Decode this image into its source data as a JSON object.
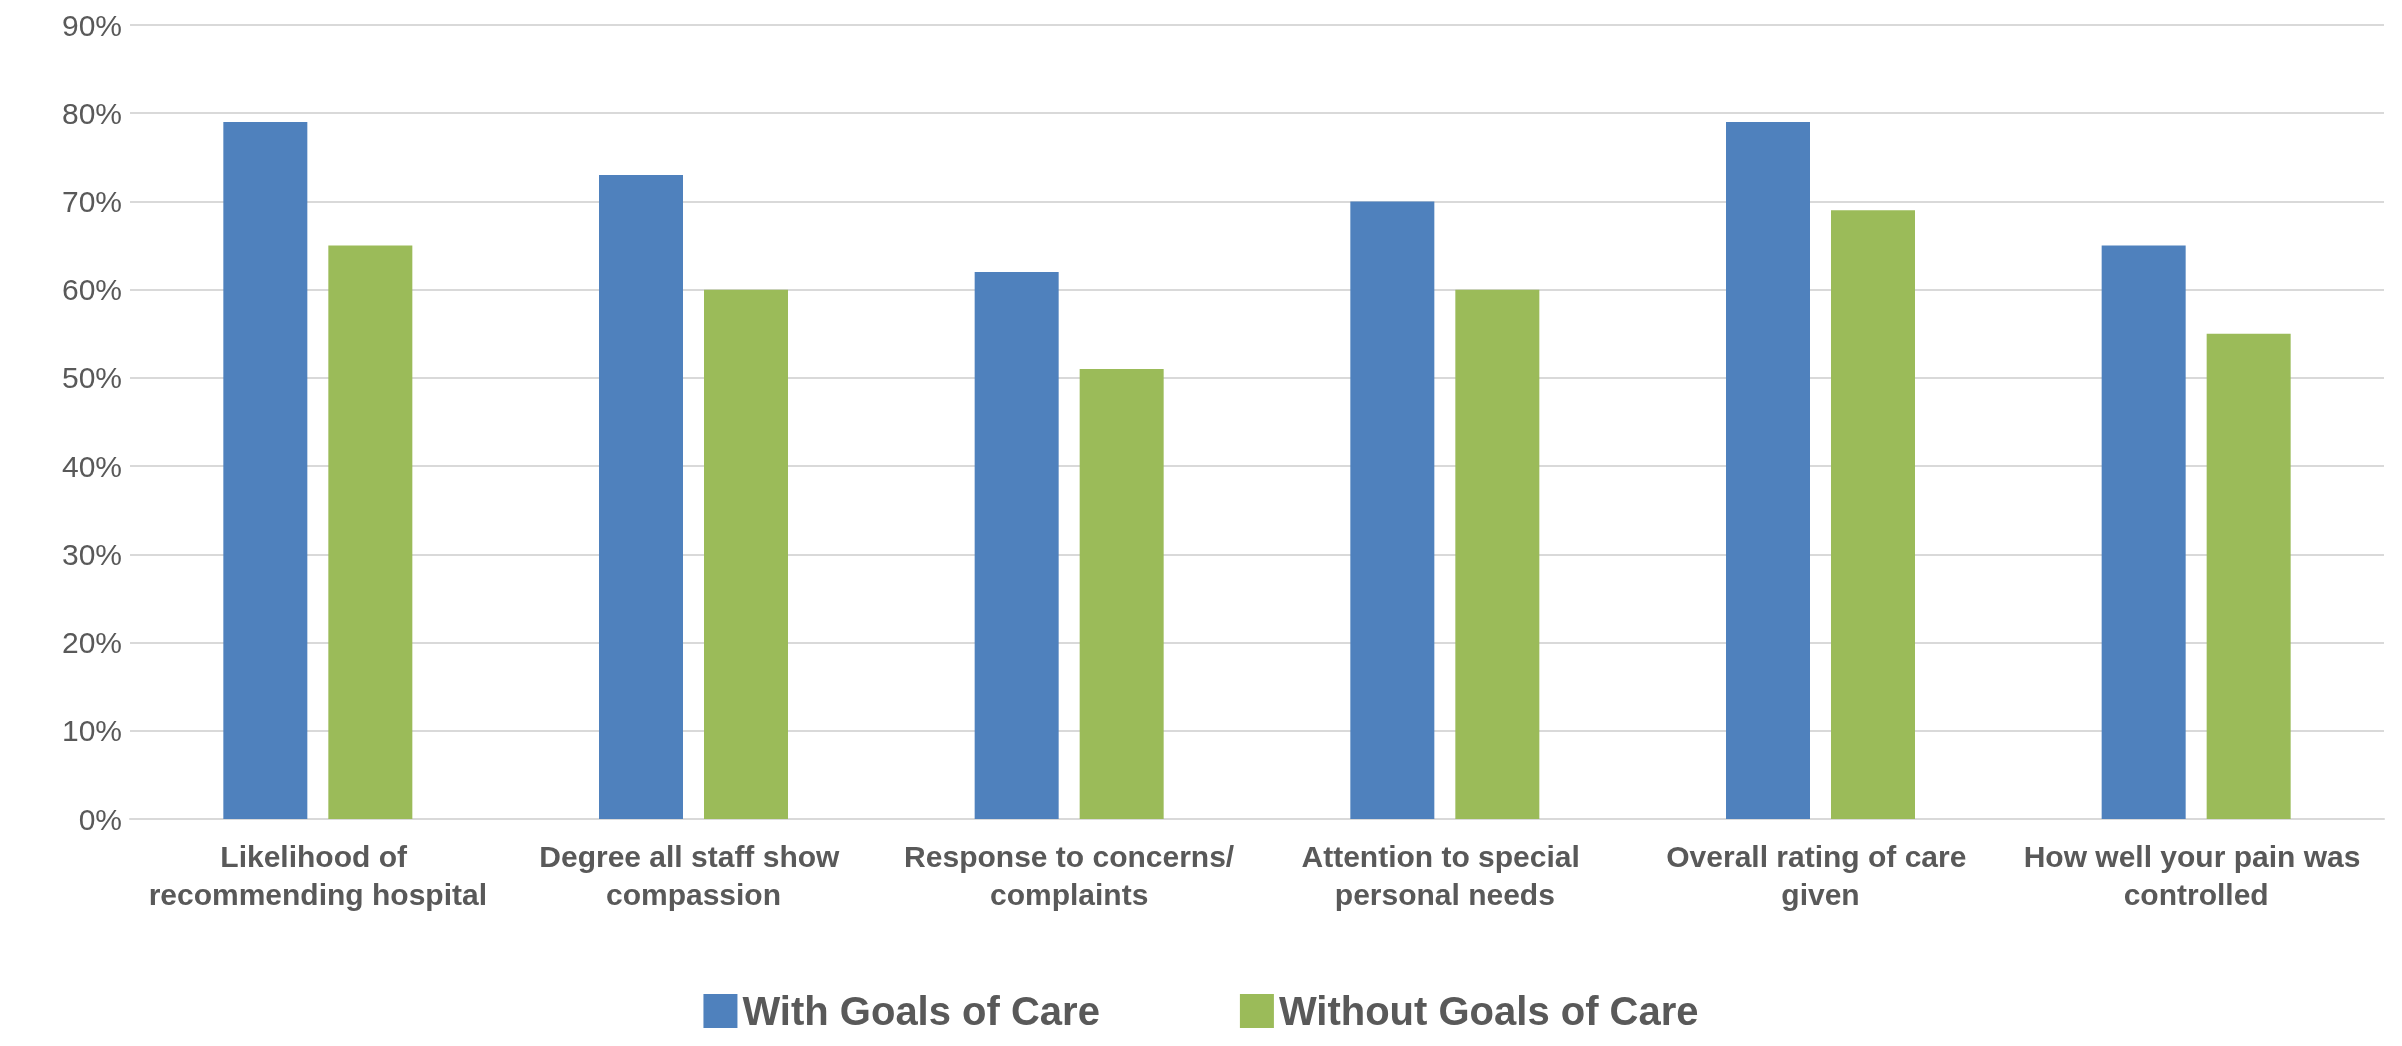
{
  "chart_data": {
    "type": "bar",
    "categories": [
      "Likelihood of recommending hospital",
      "Degree all staff show compassion",
      "Response to concerns/complaints",
      "Attention to special personal needs",
      "Overall rating of care given",
      "How well your pain was controlled"
    ],
    "series": [
      {
        "name": "With Goals of Care",
        "color": "#4f81bd",
        "values": [
          79,
          73,
          62,
          70,
          79,
          65
        ]
      },
      {
        "name": "Without Goals of Care",
        "color": "#9bbb59",
        "values": [
          65,
          60,
          51,
          60,
          69,
          55
        ]
      }
    ],
    "ylim": [
      0,
      90
    ],
    "yticks": [
      {
        "value": 0,
        "label": "0%"
      },
      {
        "value": 10,
        "label": "10%"
      },
      {
        "value": 20,
        "label": "20%"
      },
      {
        "value": 30,
        "label": "30%"
      },
      {
        "value": 40,
        "label": "40%"
      },
      {
        "value": 50,
        "label": "50%"
      },
      {
        "value": 60,
        "label": "60%"
      },
      {
        "value": 70,
        "label": "70%"
      },
      {
        "value": 80,
        "label": "80%"
      },
      {
        "value": 90,
        "label": "90%"
      }
    ],
    "grid": "y",
    "legend": "bottom"
  }
}
